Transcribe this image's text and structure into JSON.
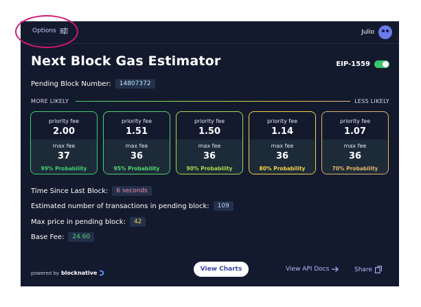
{
  "topbar": {
    "options_label": "Options",
    "user_name": "Julio"
  },
  "title": "Next Block Gas Estimator",
  "eip_label": "EIP-1559",
  "pending_block": {
    "label": "Pending Block Number:",
    "value": "14807372"
  },
  "likelihood": {
    "left": "MORE LIKELY",
    "right": "LESS LIKELY"
  },
  "cards": [
    {
      "priority_label": "priority fee",
      "priority_fee": "2.00",
      "max_label": "max fee",
      "max_fee": "37",
      "probability": "99% Probability",
      "color": "#3fcf6d"
    },
    {
      "priority_label": "priority fee",
      "priority_fee": "1.51",
      "max_label": "max fee",
      "max_fee": "36",
      "probability": "95% Probability",
      "color": "#52d46e"
    },
    {
      "priority_label": "priority fee",
      "priority_fee": "1.50",
      "max_label": "max fee",
      "max_fee": "36",
      "probability": "90% Probability",
      "color": "#a6dc4e"
    },
    {
      "priority_label": "priority fee",
      "priority_fee": "1.14",
      "max_label": "max fee",
      "max_fee": "36",
      "probability": "80% Probability",
      "color": "#f3d24b"
    },
    {
      "priority_label": "priority fee",
      "priority_fee": "1.07",
      "max_label": "max fee",
      "max_fee": "36",
      "probability": "70% Probability",
      "color": "#e3b36c"
    }
  ],
  "stats": {
    "time_since": {
      "label": "Time Since Last Block:",
      "value": "6 seconds",
      "color": "#f08aa8"
    },
    "est_tx": {
      "label": "Estimated number of transactions in pending block:",
      "value": "109",
      "color": "#c8cbff"
    },
    "max_price": {
      "label": "Max price in pending block:",
      "value": "42",
      "color": "#f3d24b"
    },
    "base_fee": {
      "label": "Base Fee:",
      "value": "24.60",
      "color": "#52d46e"
    }
  },
  "footer": {
    "powered_by": "powered by",
    "brand": "blocknative",
    "view_charts": "View Charts",
    "api_docs": "View API Docs",
    "share": "Share"
  },
  "icons": [
    "sliders-icon",
    "avatar-icon",
    "arrow-right-icon",
    "copy-icon",
    "blocknative-logo-icon"
  ]
}
